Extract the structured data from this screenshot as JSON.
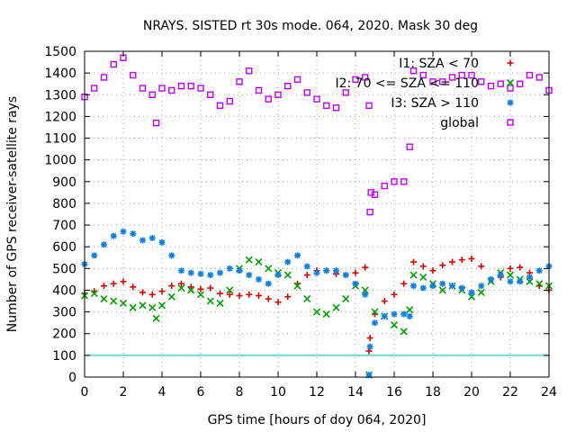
{
  "chart_data": {
    "type": "scatter",
    "title": "NRAYS. SISTED rt 30s mode. 064, 2020. Mask 30 deg",
    "xlabel": "GPS time [hours of doy 064, 2020]",
    "ylabel": "Number of GPS receiver-satellite rays",
    "xlim": [
      0,
      24
    ],
    "ylim": [
      0,
      1500
    ],
    "x_ticks": [
      "0",
      "2",
      "4",
      "6",
      "8",
      "10",
      "12",
      "14",
      "16",
      "18",
      "20",
      "22",
      "24"
    ],
    "y_ticks": [
      "0",
      "100",
      "200",
      "300",
      "400",
      "500",
      "600",
      "700",
      "800",
      "900",
      "1000",
      "1100",
      "1200",
      "1300",
      "1400",
      "1500"
    ],
    "grid": true,
    "legend_position": "top-right",
    "threshold_line": {
      "y": 100,
      "color": "#00c0c0"
    },
    "series": [
      {
        "name": "I1: SZA < 70",
        "marker": "+",
        "color": "#e00000",
        "points": [
          [
            0,
            385
          ],
          [
            0.5,
            395
          ],
          [
            1,
            420
          ],
          [
            1.5,
            430
          ],
          [
            2,
            440
          ],
          [
            2.5,
            415
          ],
          [
            3,
            390
          ],
          [
            3.5,
            380
          ],
          [
            4,
            395
          ],
          [
            4.5,
            420
          ],
          [
            5,
            430
          ],
          [
            5.5,
            415
          ],
          [
            6,
            405
          ],
          [
            6.5,
            410
          ],
          [
            7,
            385
          ],
          [
            7.5,
            380
          ],
          [
            8,
            375
          ],
          [
            8.5,
            380
          ],
          [
            9,
            375
          ],
          [
            9.5,
            360
          ],
          [
            10,
            345
          ],
          [
            10.5,
            370
          ],
          [
            11,
            430
          ],
          [
            11.5,
            470
          ],
          [
            12,
            490
          ],
          [
            12.5,
            490
          ],
          [
            13,
            475
          ],
          [
            13.5,
            470
          ],
          [
            14,
            480
          ],
          [
            14.5,
            505
          ],
          [
            14.7,
            120
          ],
          [
            14.75,
            180
          ],
          [
            15,
            290
          ],
          [
            15.5,
            350
          ],
          [
            16,
            380
          ],
          [
            16.5,
            430
          ],
          [
            17,
            530
          ],
          [
            17.5,
            510
          ],
          [
            18,
            490
          ],
          [
            18.5,
            515
          ],
          [
            19,
            530
          ],
          [
            19.5,
            540
          ],
          [
            20,
            545
          ],
          [
            20.5,
            510
          ],
          [
            21,
            450
          ],
          [
            21.5,
            460
          ],
          [
            22,
            500
          ],
          [
            22.5,
            505
          ],
          [
            23,
            480
          ],
          [
            23.5,
            420
          ],
          [
            24,
            400
          ]
        ]
      },
      {
        "name": "I2: 70 <= SZA <= 110",
        "marker": "x",
        "color": "#00a000",
        "points": [
          [
            0,
            375
          ],
          [
            0.5,
            385
          ],
          [
            1,
            360
          ],
          [
            1.5,
            350
          ],
          [
            2,
            340
          ],
          [
            2.5,
            320
          ],
          [
            3,
            330
          ],
          [
            3.5,
            320
          ],
          [
            3.7,
            270
          ],
          [
            4,
            330
          ],
          [
            4.5,
            370
          ],
          [
            5,
            410
          ],
          [
            5.5,
            400
          ],
          [
            6,
            380
          ],
          [
            6.5,
            350
          ],
          [
            7,
            340
          ],
          [
            7.5,
            400
          ],
          [
            8,
            500
          ],
          [
            8.5,
            540
          ],
          [
            9,
            530
          ],
          [
            9.5,
            500
          ],
          [
            10,
            480
          ],
          [
            10.5,
            470
          ],
          [
            11,
            420
          ],
          [
            11.5,
            360
          ],
          [
            12,
            300
          ],
          [
            12.5,
            290
          ],
          [
            13,
            320
          ],
          [
            13.5,
            360
          ],
          [
            14,
            420
          ],
          [
            14.5,
            400
          ],
          [
            14.7,
            10
          ],
          [
            15,
            300
          ],
          [
            15.5,
            280
          ],
          [
            16,
            240
          ],
          [
            16.5,
            210
          ],
          [
            16.8,
            310
          ],
          [
            17,
            470
          ],
          [
            17.5,
            460
          ],
          [
            18,
            430
          ],
          [
            18.5,
            400
          ],
          [
            19,
            420
          ],
          [
            19.5,
            400
          ],
          [
            20,
            370
          ],
          [
            20.5,
            390
          ],
          [
            21,
            440
          ],
          [
            21.5,
            480
          ],
          [
            22,
            470
          ],
          [
            22.5,
            450
          ],
          [
            23,
            440
          ],
          [
            23.5,
            430
          ],
          [
            24,
            420
          ]
        ]
      },
      {
        "name": "I3: SZA > 110",
        "marker": "*",
        "color": "#1080e0",
        "points": [
          [
            0,
            520
          ],
          [
            0.5,
            560
          ],
          [
            1,
            610
          ],
          [
            1.5,
            650
          ],
          [
            2,
            670
          ],
          [
            2.5,
            660
          ],
          [
            3,
            630
          ],
          [
            3.5,
            640
          ],
          [
            4,
            620
          ],
          [
            4.5,
            560
          ],
          [
            5,
            490
          ],
          [
            5.5,
            480
          ],
          [
            6,
            475
          ],
          [
            6.5,
            470
          ],
          [
            7,
            480
          ],
          [
            7.5,
            500
          ],
          [
            8,
            490
          ],
          [
            8.5,
            470
          ],
          [
            9,
            450
          ],
          [
            9.5,
            430
          ],
          [
            10,
            470
          ],
          [
            10.5,
            530
          ],
          [
            11,
            560
          ],
          [
            11.5,
            510
          ],
          [
            12,
            480
          ],
          [
            12.5,
            490
          ],
          [
            13,
            490
          ],
          [
            13.5,
            470
          ],
          [
            14,
            430
          ],
          [
            14.5,
            380
          ],
          [
            14.7,
            10
          ],
          [
            14.75,
            140
          ],
          [
            15,
            250
          ],
          [
            15.5,
            280
          ],
          [
            16,
            290
          ],
          [
            16.5,
            290
          ],
          [
            16.8,
            280
          ],
          [
            17,
            420
          ],
          [
            17.5,
            410
          ],
          [
            18,
            420
          ],
          [
            18.5,
            430
          ],
          [
            19,
            420
          ],
          [
            19.5,
            410
          ],
          [
            20,
            390
          ],
          [
            20.5,
            420
          ],
          [
            21,
            450
          ],
          [
            21.5,
            470
          ],
          [
            22,
            440
          ],
          [
            22.5,
            440
          ],
          [
            23,
            460
          ],
          [
            23.5,
            490
          ],
          [
            24,
            510
          ]
        ]
      },
      {
        "name": "global",
        "marker": "square",
        "color": "#c000ff",
        "points": [
          [
            0,
            1290
          ],
          [
            0.5,
            1330
          ],
          [
            1,
            1380
          ],
          [
            1.5,
            1440
          ],
          [
            2,
            1470
          ],
          [
            2.5,
            1390
          ],
          [
            3,
            1330
          ],
          [
            3.5,
            1300
          ],
          [
            3.7,
            1170
          ],
          [
            4,
            1330
          ],
          [
            4.5,
            1320
          ],
          [
            5,
            1340
          ],
          [
            5.5,
            1340
          ],
          [
            6,
            1330
          ],
          [
            6.5,
            1300
          ],
          [
            7,
            1250
          ],
          [
            7.5,
            1270
          ],
          [
            8,
            1360
          ],
          [
            8.5,
            1410
          ],
          [
            9,
            1320
          ],
          [
            9.5,
            1280
          ],
          [
            10,
            1300
          ],
          [
            10.5,
            1340
          ],
          [
            11,
            1370
          ],
          [
            11.5,
            1310
          ],
          [
            12,
            1280
          ],
          [
            12.5,
            1250
          ],
          [
            13,
            1240
          ],
          [
            13.5,
            1310
          ],
          [
            14,
            1370
          ],
          [
            14.5,
            1380
          ],
          [
            14.7,
            1250
          ],
          [
            14.75,
            760
          ],
          [
            14.8,
            850
          ],
          [
            15,
            840
          ],
          [
            15.5,
            880
          ],
          [
            16,
            900
          ],
          [
            16.5,
            900
          ],
          [
            16.8,
            1060
          ],
          [
            17,
            1410
          ],
          [
            17.5,
            1390
          ],
          [
            18,
            1360
          ],
          [
            18.5,
            1360
          ],
          [
            19,
            1380
          ],
          [
            19.5,
            1390
          ],
          [
            20,
            1390
          ],
          [
            20.5,
            1360
          ],
          [
            21,
            1340
          ],
          [
            21.5,
            1350
          ],
          [
            22,
            1330
          ],
          [
            22.5,
            1350
          ],
          [
            23,
            1390
          ],
          [
            23.5,
            1380
          ],
          [
            24,
            1320
          ]
        ]
      }
    ]
  }
}
